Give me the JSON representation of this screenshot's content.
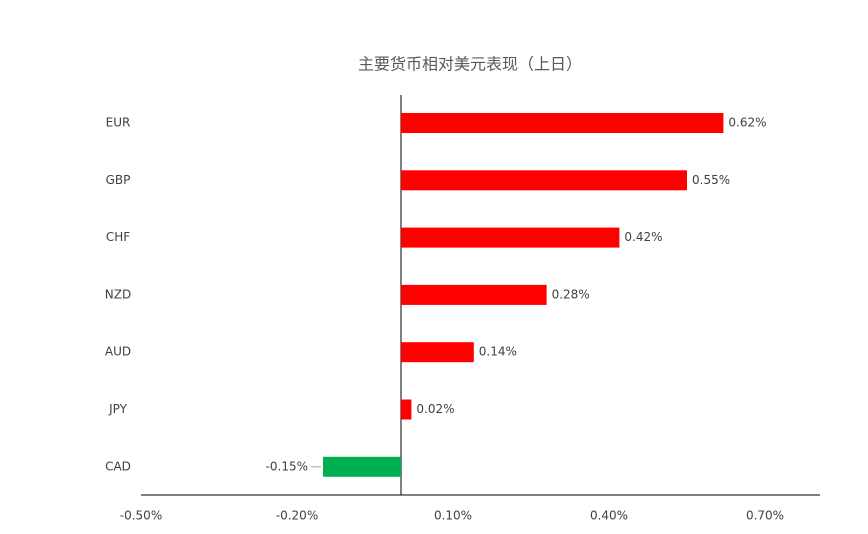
{
  "chart_data": {
    "type": "bar",
    "orientation": "horizontal",
    "title": "主要货币相对美元表现（上日）",
    "categories": [
      "EUR",
      "GBP",
      "CHF",
      "NZD",
      "AUD",
      "JPY",
      "CAD"
    ],
    "values": [
      0.62,
      0.55,
      0.42,
      0.28,
      0.14,
      0.02,
      -0.15
    ],
    "value_labels": [
      "0.62%",
      "0.55%",
      "0.42%",
      "0.28%",
      "0.14%",
      "0.02%",
      "-0.15%"
    ],
    "colors": [
      "#ff0000",
      "#ff0000",
      "#ff0000",
      "#ff0000",
      "#ff0000",
      "#ff0000",
      "#00b050"
    ],
    "xlim": [
      -0.5,
      0.8
    ],
    "xticks": [
      {
        "value": -0.5,
        "label": "-0.50%"
      },
      {
        "value": -0.2,
        "label": "-0.20%"
      },
      {
        "value": 0.1,
        "label": "0.10%"
      },
      {
        "value": 0.4,
        "label": "0.40%"
      },
      {
        "value": 0.7,
        "label": "0.70%"
      }
    ],
    "grid": false
  }
}
